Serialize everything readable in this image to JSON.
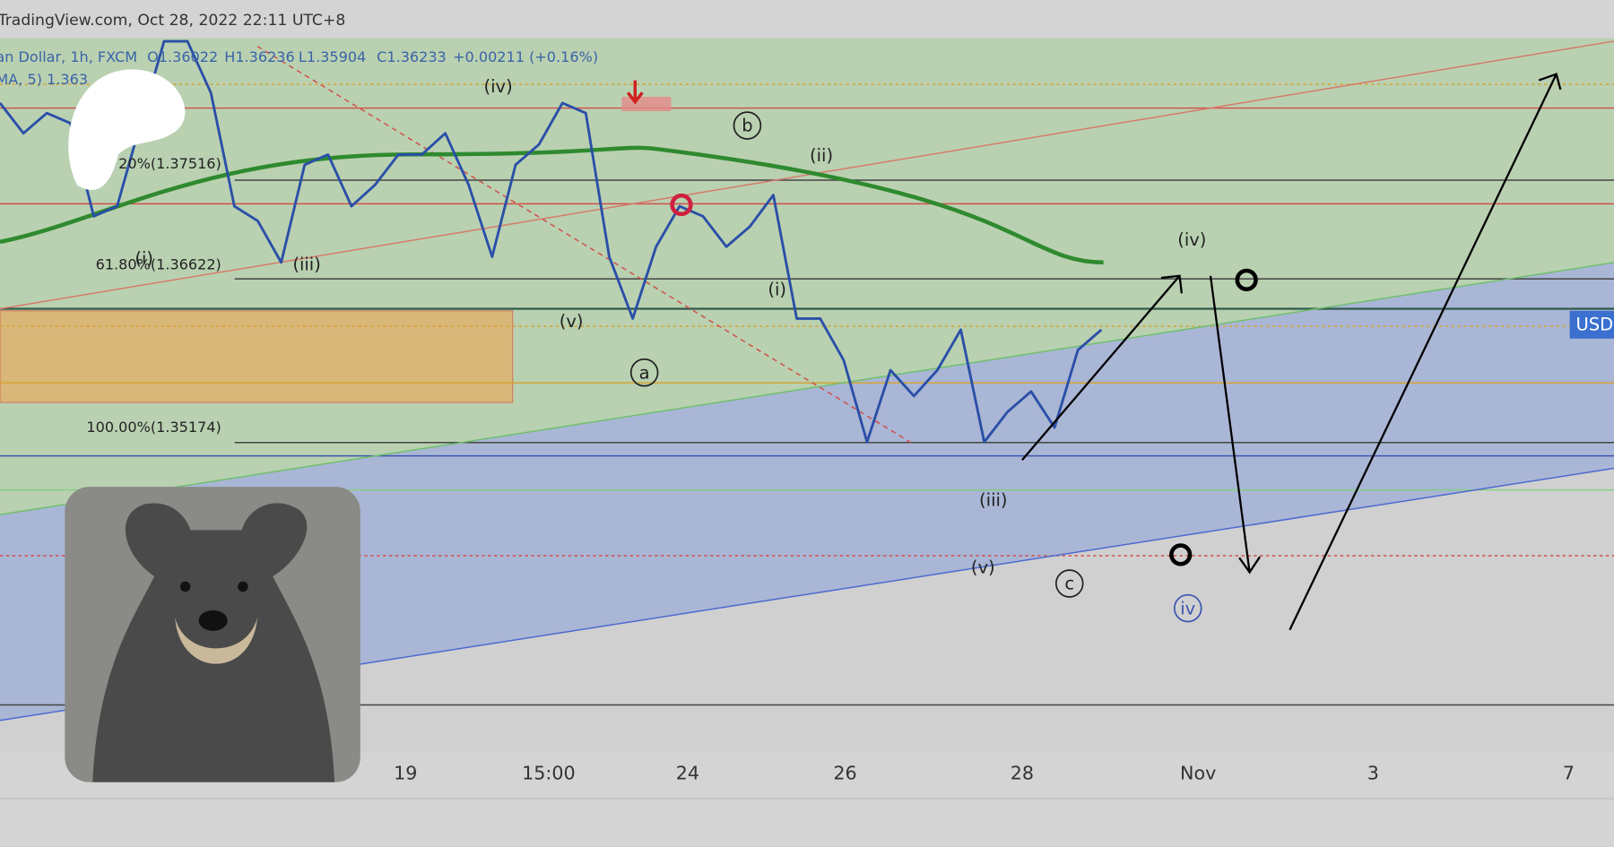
{
  "header": {
    "title": "TradingView.com, Oct 28, 2022 22:11 UTC+8"
  },
  "legend": {
    "symbol": "an Dollar, 1h, FXCM",
    "open": "O1.36022",
    "high": "H1.36236",
    "low": "L1.35904",
    "close": "C1.36233",
    "change": "+0.00211 (+0.16%)",
    "ma": "MA, 5)  1.363"
  },
  "fib_levels": [
    "20%(1.37516)",
    "61.80%(1.36622)",
    "100.00%(1.35174)"
  ],
  "waves": [
    "(iv)",
    "b",
    "(ii)",
    "(i)",
    "(iii)",
    "(i)",
    "(v)",
    "a",
    "(iv)",
    "(iii)",
    "(v)",
    "c",
    "iv"
  ],
  "x_axis": [
    "19",
    "15:00",
    "24",
    "26",
    "28",
    "Nov",
    "3",
    "7"
  ],
  "price_label": "USD",
  "price_trace": {
    "ylim": [
      1.32296,
      1.38648
    ],
    "values": [
      1.3807,
      1.378,
      1.3798,
      1.3789,
      1.3706,
      1.3715,
      1.3789,
      1.3862,
      1.3862,
      1.3816,
      1.3715,
      1.3702,
      1.3665,
      1.3752,
      1.3761,
      1.3715,
      1.3734,
      1.3761,
      1.3761,
      1.378,
      1.3734,
      1.367,
      1.3752,
      1.377,
      1.3807,
      1.3798,
      1.367,
      1.3615,
      1.3679,
      1.3715,
      1.3706,
      1.3679,
      1.3697,
      1.3725,
      1.3615,
      1.3615,
      1.3578,
      1.3505,
      1.3569,
      1.3546,
      1.3569,
      1.3605,
      1.3505,
      1.3532,
      1.355,
      1.3518,
      1.3587,
      1.3605
    ]
  }
}
